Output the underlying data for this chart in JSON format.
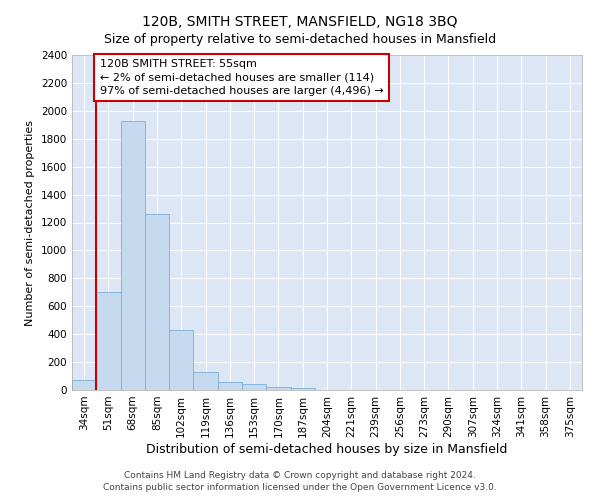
{
  "title": "120B, SMITH STREET, MANSFIELD, NG18 3BQ",
  "subtitle": "Size of property relative to semi-detached houses in Mansfield",
  "xlabel": "Distribution of semi-detached houses by size in Mansfield",
  "ylabel": "Number of semi-detached properties",
  "categories": [
    "34sqm",
    "51sqm",
    "68sqm",
    "85sqm",
    "102sqm",
    "119sqm",
    "136sqm",
    "153sqm",
    "170sqm",
    "187sqm",
    "204sqm",
    "221sqm",
    "239sqm",
    "256sqm",
    "273sqm",
    "290sqm",
    "307sqm",
    "324sqm",
    "341sqm",
    "358sqm",
    "375sqm"
  ],
  "values": [
    70,
    700,
    1930,
    1260,
    430,
    130,
    55,
    40,
    25,
    15,
    3,
    2,
    1,
    1,
    1,
    0,
    0,
    0,
    0,
    0,
    0
  ],
  "bar_color": "#c5d9ef",
  "bar_edge_color": "#7bafd4",
  "annotation_text": "120B SMITH STREET: 55sqm\n← 2% of semi-detached houses are smaller (114)\n97% of semi-detached houses are larger (4,496) →",
  "annotation_box_color": "#ffffff",
  "annotation_box_edge_color": "#cc0000",
  "vline_color": "#cc0000",
  "ylim": [
    0,
    2400
  ],
  "yticks": [
    0,
    200,
    400,
    600,
    800,
    1000,
    1200,
    1400,
    1600,
    1800,
    2000,
    2200,
    2400
  ],
  "figure_background": "#ffffff",
  "plot_background": "#dce6f5",
  "grid_color": "#ffffff",
  "footer_line1": "Contains HM Land Registry data © Crown copyright and database right 2024.",
  "footer_line2": "Contains public sector information licensed under the Open Government Licence v3.0.",
  "title_fontsize": 10,
  "subtitle_fontsize": 9,
  "xlabel_fontsize": 9,
  "ylabel_fontsize": 8,
  "tick_fontsize": 7.5,
  "annotation_fontsize": 8,
  "footer_fontsize": 6.5
}
